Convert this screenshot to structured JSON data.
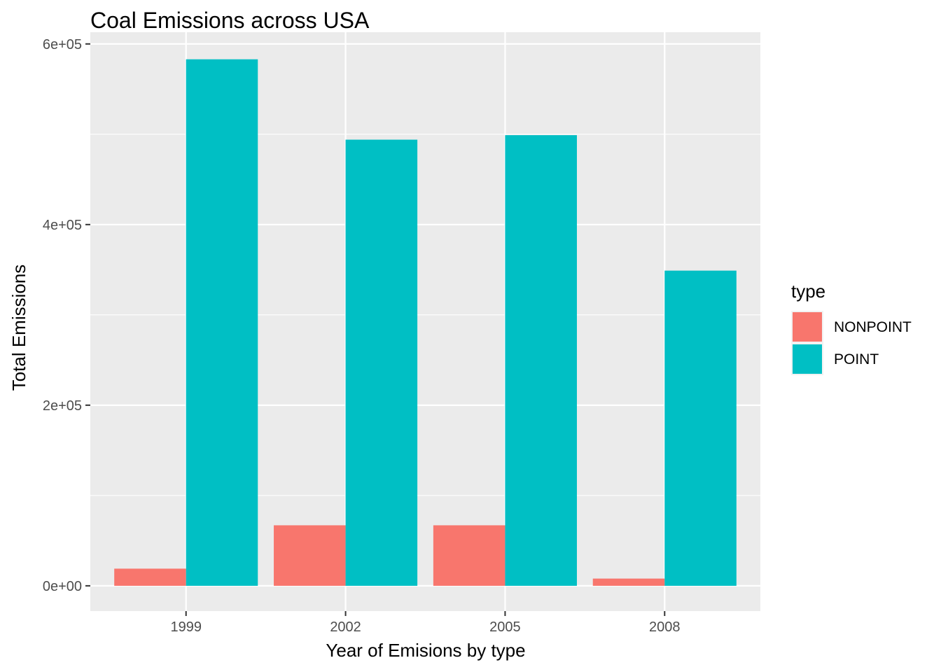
{
  "chart_data": {
    "type": "bar",
    "title": "Coal Emissions across USA",
    "xlabel": "Year of Emisions by type",
    "ylabel": "Total Emissions",
    "categories": [
      "1999",
      "2002",
      "2005",
      "2008"
    ],
    "series": [
      {
        "name": "NONPOINT",
        "color": "#F8766D",
        "values": [
          19000,
          67000,
          67000,
          8000
        ]
      },
      {
        "name": "POINT",
        "color": "#00BFC4",
        "values": [
          583000,
          494000,
          499000,
          349000
        ]
      }
    ],
    "ylim": [
      -28000,
      613000
    ],
    "yticks": [
      {
        "value": 0,
        "label": "0e+00"
      },
      {
        "value": 200000,
        "label": "2e+05"
      },
      {
        "value": 400000,
        "label": "4e+05"
      },
      {
        "value": 600000,
        "label": "6e+05"
      }
    ],
    "legend": {
      "title": "type",
      "position": "right"
    },
    "grid": true,
    "background": "#EBEBEB"
  }
}
